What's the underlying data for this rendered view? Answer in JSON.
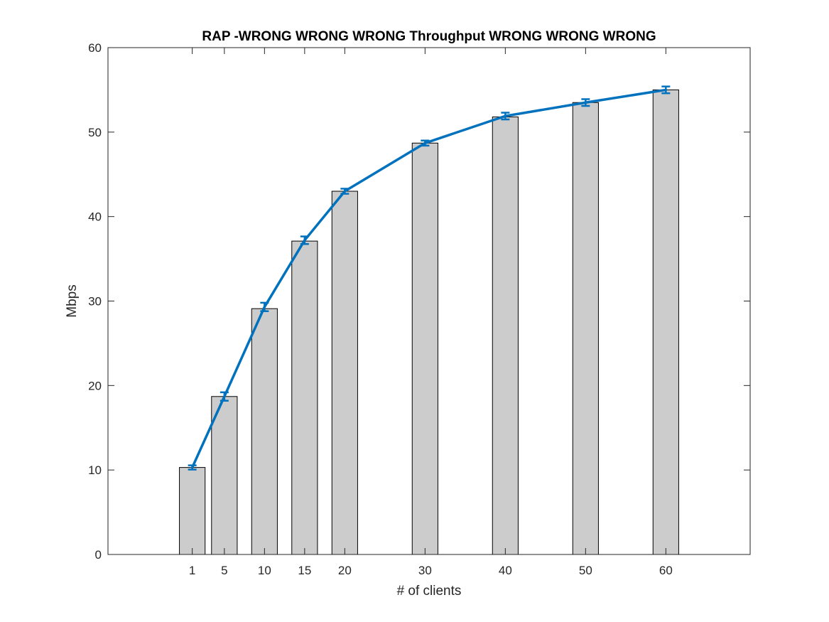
{
  "chart_data": {
    "type": "bar",
    "title": "RAP -WRONG WRONG WRONG Throughput WRONG WRONG WRONG",
    "xlabel": "# of clients",
    "ylabel": "Mbps",
    "x": [
      1,
      5,
      10,
      15,
      20,
      30,
      40,
      50,
      60
    ],
    "xlim": [
      -9.5,
      70.5
    ],
    "ylim": [
      0,
      60
    ],
    "yticks": [
      0,
      10,
      20,
      30,
      40,
      50,
      60
    ],
    "grid": false,
    "legend": "none",
    "series": [
      {
        "type": "bar",
        "values": [
          10.3,
          18.7,
          29.1,
          37.1,
          43.0,
          48.7,
          51.8,
          53.5,
          55.0
        ],
        "color": "#cccccc"
      },
      {
        "type": "line",
        "values": [
          10.3,
          18.7,
          29.3,
          37.2,
          43.0,
          48.7,
          51.9,
          53.5,
          55.0
        ],
        "errors": [
          0.25,
          0.5,
          0.5,
          0.45,
          0.3,
          0.3,
          0.4,
          0.4,
          0.4
        ],
        "color": "#0072bd"
      }
    ]
  }
}
